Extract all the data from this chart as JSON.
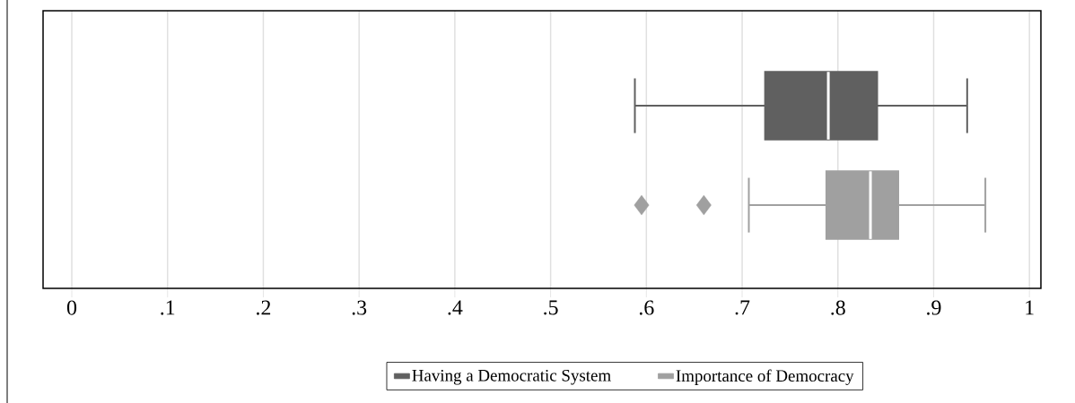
{
  "chart_data": {
    "type": "box",
    "orientation": "horizontal",
    "categories": [
      null,
      null
    ],
    "series": [
      {
        "name": "Having a Democratic System",
        "color": "#606060",
        "boxes": [
          {
            "low": 0.588,
            "q1": 0.724,
            "median": 0.79,
            "q3": 0.841,
            "high": 0.935
          },
          null
        ]
      },
      {
        "name": "Importance of Democracy",
        "color": "#a0a0a0",
        "boxes": [
          null,
          {
            "low": 0.707,
            "q1": 0.788,
            "median": 0.834,
            "q3": 0.863,
            "high": 0.954,
            "outliers": [
              0.595,
              0.66
            ]
          }
        ]
      }
    ],
    "xlim": [
      -0.03,
      1.012
    ],
    "xticks": [
      {
        "value": 0,
        "label": "0"
      },
      {
        "value": 0.1,
        "label": ".1"
      },
      {
        "value": 0.2,
        "label": ".2"
      },
      {
        "value": 0.3,
        "label": ".3"
      },
      {
        "value": 0.4,
        "label": ".4"
      },
      {
        "value": 0.5,
        "label": ".5"
      },
      {
        "value": 0.6,
        "label": ".6"
      },
      {
        "value": 0.7,
        "label": ".7"
      },
      {
        "value": 0.8,
        "label": ".8"
      },
      {
        "value": 0.9,
        "label": ".9"
      },
      {
        "value": 1,
        "label": "1"
      }
    ],
    "grid": "x",
    "legend": "bottom",
    "marker": "diamond"
  }
}
